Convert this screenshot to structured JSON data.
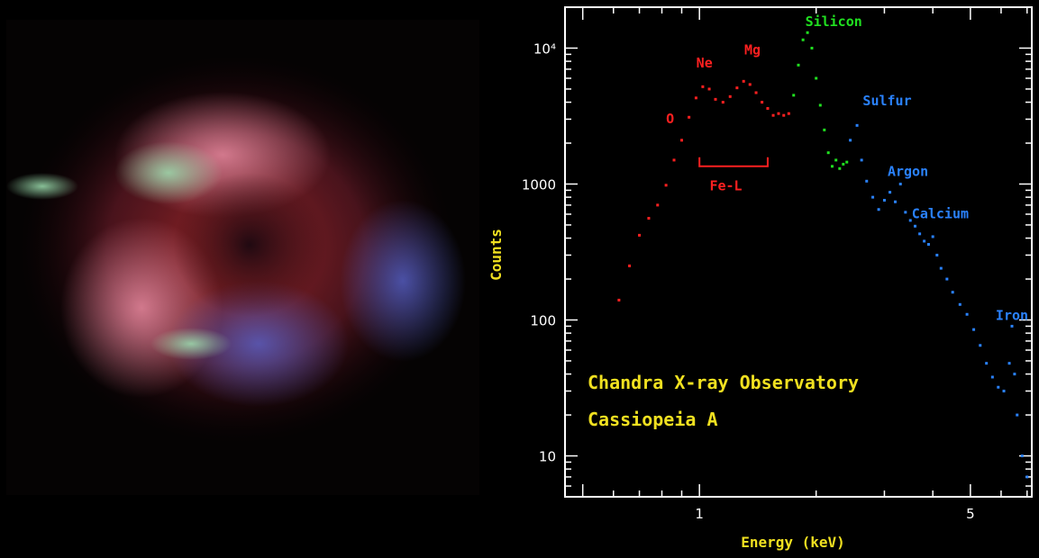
{
  "image_panel": {
    "description_icon": "supernova-remnant-xray-image"
  },
  "chart_data": {
    "type": "scatter",
    "xlabel": "Energy (keV)",
    "ylabel": "Counts",
    "x_scale": "log",
    "y_scale": "log",
    "xlim": [
      0.45,
      7.2
    ],
    "ylim": [
      5,
      20000
    ],
    "x_tick_labels": [
      {
        "value": 1,
        "label": "1"
      },
      {
        "value": 5,
        "label": "5"
      }
    ],
    "y_tick_labels": [
      {
        "value": 10,
        "label": "10"
      },
      {
        "value": 100,
        "label": "100"
      },
      {
        "value": 1000,
        "label": "1000"
      },
      {
        "value": 10000,
        "label": "10⁴"
      }
    ],
    "series": [
      {
        "color": "#ff2020",
        "x": [
          0.62,
          0.66,
          0.7,
          0.74,
          0.78,
          0.82,
          0.86,
          0.9,
          0.94,
          0.98,
          1.02,
          1.06,
          1.1,
          1.15,
          1.2,
          1.25,
          1.3,
          1.35,
          1.4,
          1.45,
          1.5,
          1.55,
          1.6,
          1.65,
          1.7
        ],
        "y": [
          140,
          250,
          420,
          560,
          700,
          980,
          1500,
          2100,
          3100,
          4300,
          5200,
          5000,
          4200,
          4000,
          4400,
          5100,
          5700,
          5400,
          4700,
          4000,
          3600,
          3200,
          3300,
          3200,
          3300
        ]
      },
      {
        "color": "#20e020",
        "x": [
          1.75,
          1.8,
          1.85,
          1.9,
          1.95,
          2.0,
          2.05,
          2.1,
          2.15,
          2.2,
          2.25,
          2.3,
          2.35,
          2.4
        ],
        "y": [
          4500,
          7500,
          11500,
          13000,
          10000,
          6000,
          3800,
          2500,
          1700,
          1350,
          1500,
          1300,
          1400,
          1450
        ]
      },
      {
        "color": "#2a82ff",
        "x": [
          2.45,
          2.55,
          2.62,
          2.7,
          2.8,
          2.9,
          3.0,
          3.1,
          3.2,
          3.3,
          3.4,
          3.5,
          3.6,
          3.7,
          3.8,
          3.9,
          4.0,
          4.1,
          4.2,
          4.35,
          4.5,
          4.7,
          4.9,
          5.1,
          5.3,
          5.5,
          5.7,
          5.9,
          6.1,
          6.3,
          6.4,
          6.5,
          6.6,
          6.8,
          7.0
        ],
        "y": [
          2100,
          2700,
          1500,
          1050,
          800,
          650,
          760,
          870,
          740,
          1000,
          620,
          540,
          490,
          430,
          380,
          360,
          410,
          300,
          240,
          200,
          160,
          130,
          110,
          85,
          65,
          48,
          38,
          32,
          30,
          48,
          90,
          40,
          20,
          10,
          7
        ]
      }
    ],
    "annotations": [
      {
        "text": "O",
        "color": "#ff2020",
        "x": 0.84,
        "y": 2800
      },
      {
        "text": "Ne",
        "color": "#ff2020",
        "x": 1.03,
        "y": 7200
      },
      {
        "text": "Mg",
        "color": "#ff2020",
        "x": 1.37,
        "y": 9000
      },
      {
        "text": "Silicon",
        "color": "#20e020",
        "x": 2.22,
        "y": 14500
      },
      {
        "text": "Sulfur",
        "color": "#2a82ff",
        "x": 3.05,
        "y": 3800
      },
      {
        "text": "Argon",
        "color": "#2a82ff",
        "x": 3.45,
        "y": 1150
      },
      {
        "text": "Calcium",
        "color": "#2a82ff",
        "x": 4.18,
        "y": 560
      },
      {
        "text": "Iron",
        "color": "#2a82ff",
        "x": 6.4,
        "y": 100
      },
      {
        "text": "Fe-L",
        "color": "#ff2020",
        "x": 1.17,
        "y": 900
      }
    ],
    "fe_l_bracket": {
      "x_start": 1.0,
      "x_end": 1.5,
      "y": 1350,
      "color": "#ff2020"
    },
    "text_blocks": [
      {
        "text": "Chandra X-ray Observatory",
        "color": "#f0e020"
      },
      {
        "text": "Cassiopeia A",
        "color": "#f0e020"
      }
    ],
    "label_color": "#f0e020",
    "axes_color": "#ffffff",
    "grid": false
  }
}
